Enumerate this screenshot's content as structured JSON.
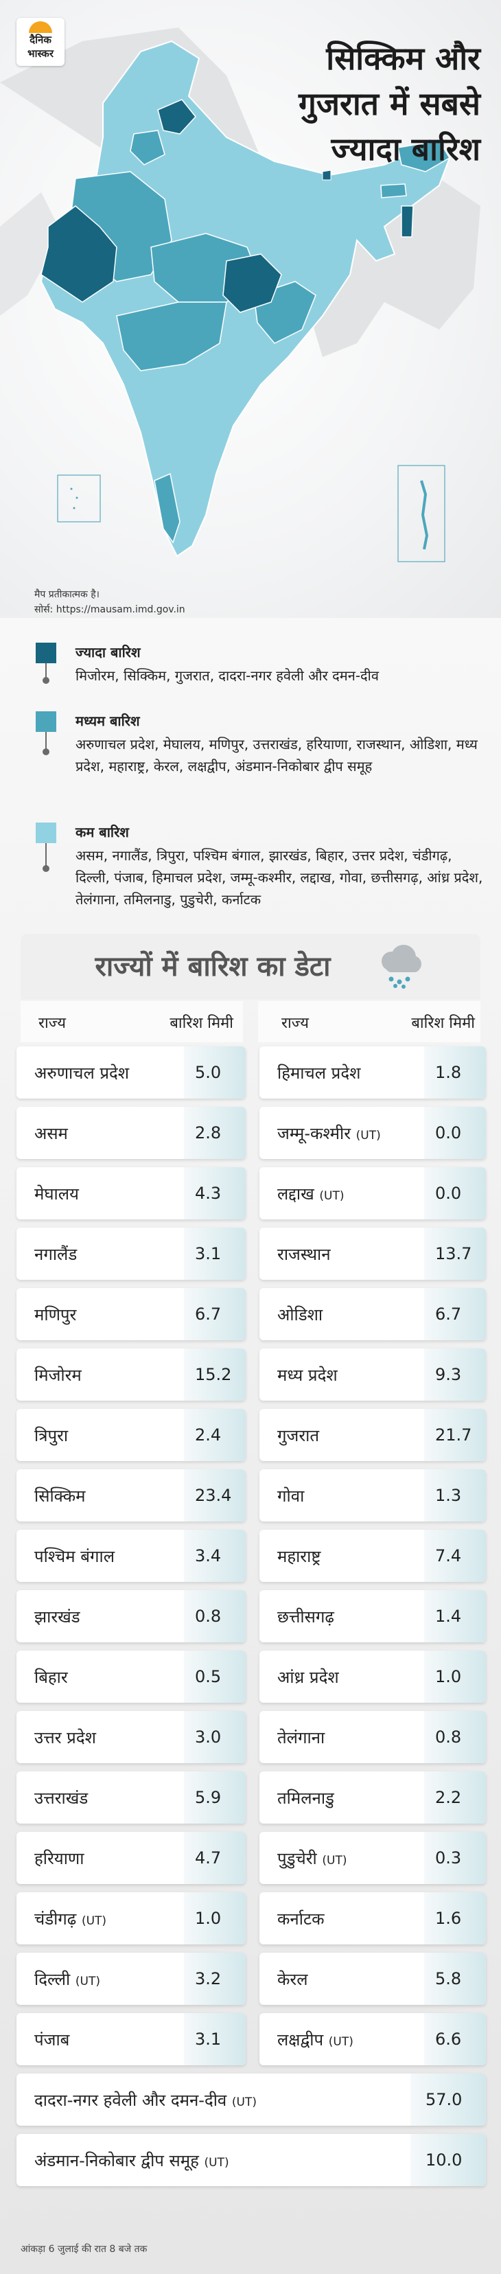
{
  "brand": {
    "line1": "दैनिक",
    "line2": "भास्कर"
  },
  "headline": [
    "सिक्किम और",
    "गुजरात में सबसे",
    "ज्यादा बारिश"
  ],
  "map_note": {
    "caption": "मैप प्रतीकात्मक है।",
    "source": "सोर्स: https://mausam.imd.gov.in"
  },
  "colors": {
    "high": "#17657f",
    "medium": "#4da8be",
    "low": "#90d2e2",
    "accent": "#f4a51c"
  },
  "legend": [
    {
      "title": "ज्यादा बारिश",
      "text": "मिजोरम, सिक्किम, गुजरात, दादरा-नगर हवेली और दमन-दीव"
    },
    {
      "title": "मध्यम बारिश",
      "text": "अरुणाचल प्रदेश, मेघालय, मणिपुर, उत्तराखंड, हरियाणा, राजस्थान, ओडिशा, मध्य प्रदेश, महाराष्ट्र, केरल, लक्षद्वीप, अंडमान-निकोबार द्वीप समूह"
    },
    {
      "title": "कम बारिश",
      "text": "असम, नगालैंड, त्रिपुरा, पश्चिम बंगाल, झारखंड, बिहार, उत्तर प्रदेश, चंडीगढ़, दिल्ली, पंजाब, हिमाचल प्रदेश, जम्मू-कश्मीर, लद्दाख, गोवा, छत्तीसगढ़, आंध्र प्रदेश, तेलंगाना, तमिलनाडु, पुडुचेरी, कर्नाटक"
    }
  ],
  "table": {
    "title": "राज्यों में बारिश का डेटा",
    "col_state": "राज्य",
    "col_rain": "बारिश मिमी",
    "ut_tag": "(UT)",
    "left": [
      {
        "name": "अरुणाचल प्रदेश",
        "value": "5.0"
      },
      {
        "name": "असम",
        "value": "2.8"
      },
      {
        "name": "मेघालय",
        "value": "4.3"
      },
      {
        "name": "नगालैंड",
        "value": "3.1"
      },
      {
        "name": "मणिपुर",
        "value": "6.7"
      },
      {
        "name": "मिजोरम",
        "value": "15.2"
      },
      {
        "name": "त्रिपुरा",
        "value": "2.4"
      },
      {
        "name": "सिक्किम",
        "value": "23.4"
      },
      {
        "name": "पश्चिम बंगाल",
        "value": "3.4"
      },
      {
        "name": "झारखंड",
        "value": "0.8"
      },
      {
        "name": "बिहार",
        "value": "0.5"
      },
      {
        "name": "उत्तर प्रदेश",
        "value": "3.0"
      },
      {
        "name": "उत्तराखंड",
        "value": "5.9"
      },
      {
        "name": "हरियाणा",
        "value": "4.7"
      },
      {
        "name": "चंडीगढ़",
        "value": "1.0",
        "ut": true
      },
      {
        "name": "दिल्ली",
        "value": "3.2",
        "ut": true
      },
      {
        "name": "पंजाब",
        "value": "3.1"
      }
    ],
    "right": [
      {
        "name": "हिमाचल प्रदेश",
        "value": "1.8"
      },
      {
        "name": "जम्मू-कश्मीर",
        "value": "0.0",
        "ut": true
      },
      {
        "name": "लद्दाख",
        "value": "0.0",
        "ut": true
      },
      {
        "name": "राजस्थान",
        "value": "13.7"
      },
      {
        "name": "ओडिशा",
        "value": "6.7"
      },
      {
        "name": "मध्य प्रदेश",
        "value": "9.3"
      },
      {
        "name": "गुजरात",
        "value": "21.7"
      },
      {
        "name": "गोवा",
        "value": "1.3"
      },
      {
        "name": "महाराष्ट्र",
        "value": "7.4"
      },
      {
        "name": "छत्तीसगढ़",
        "value": "1.4"
      },
      {
        "name": "आंध्र प्रदेश",
        "value": "1.0"
      },
      {
        "name": "तेलंगाना",
        "value": "0.8"
      },
      {
        "name": "तमिलनाडु",
        "value": "2.2"
      },
      {
        "name": "पुडुचेरी",
        "value": "0.3",
        "ut": true
      },
      {
        "name": "कर्नाटक",
        "value": "1.6"
      },
      {
        "name": "केरल",
        "value": "5.8"
      },
      {
        "name": "लक्षद्वीप",
        "value": "6.6",
        "ut": true
      }
    ],
    "full": [
      {
        "name": "दादरा-नगर हवेली और दमन-दीव",
        "value": "57.0",
        "ut": true
      },
      {
        "name": "अंडमान-निकोबार द्वीप समूह",
        "value": "10.0",
        "ut": true
      }
    ]
  },
  "footnote": "आंकड़ा 6 जुलाई की रात 8 बजे तक"
}
